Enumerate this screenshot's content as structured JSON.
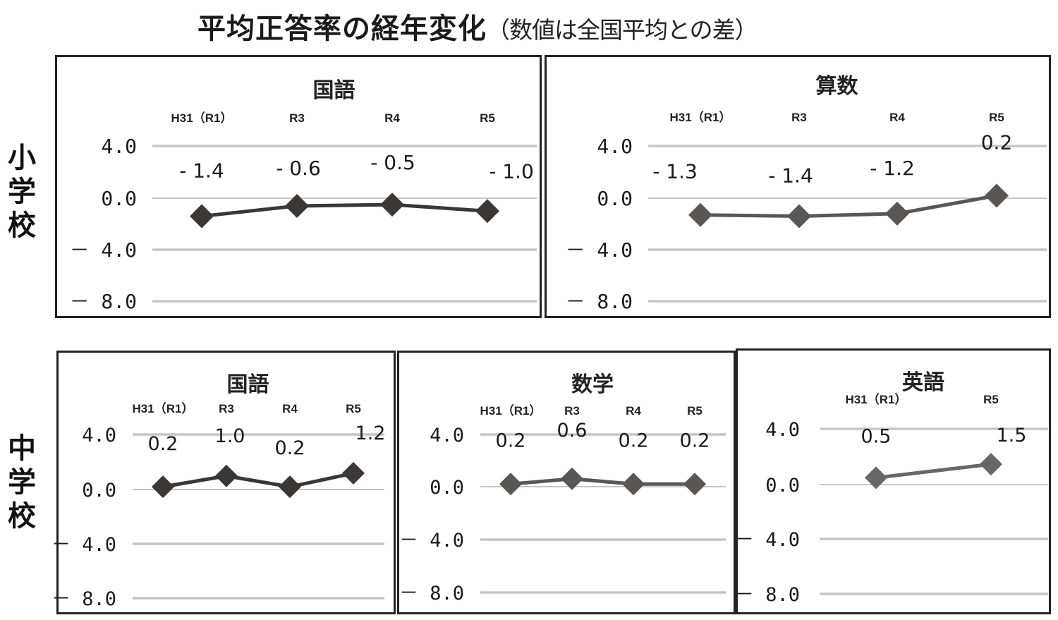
{
  "title": {
    "main": "平均正答率の経年変化",
    "sub": "（数値は全国平均との差）"
  },
  "rows": {
    "elementary": "小学校",
    "junior_high": "中学校"
  },
  "chart_data": [
    {
      "type": "line",
      "school": "小学校",
      "title": "国語",
      "categories": [
        "H31（R1）",
        "R3",
        "R4",
        "R5"
      ],
      "values": [
        -1.4,
        -0.6,
        -0.5,
        -1.0
      ],
      "data_labels": [
        "- 1.4",
        "- 0.6",
        "- 0.5",
        "- 1.0"
      ],
      "yticks": [
        "4.0",
        "0.0",
        "－ 4.0",
        "－ 8.0"
      ],
      "ylim": [
        -8.0,
        4.0
      ],
      "grid": true,
      "color": "#3a3735"
    },
    {
      "type": "line",
      "school": "小学校",
      "title": "算数",
      "categories": [
        "H31（R1）",
        "R3",
        "R4",
        "R5"
      ],
      "values": [
        -1.3,
        -1.4,
        -1.2,
        0.2
      ],
      "data_labels": [
        "- 1.3",
        "- 1.4",
        "- 1.2",
        "0.2"
      ],
      "yticks": [
        "4.0",
        "0.0",
        "－ 4.0",
        "－ 8.0"
      ],
      "ylim": [
        -8.0,
        4.0
      ],
      "grid": true,
      "color": "#5a5654"
    },
    {
      "type": "line",
      "school": "中学校",
      "title": "国語",
      "categories": [
        "H31（R1）",
        "R3",
        "R4",
        "R5"
      ],
      "values": [
        0.2,
        1.0,
        0.2,
        1.2
      ],
      "data_labels": [
        "0.2",
        "1.0",
        "0.2",
        "1.2"
      ],
      "yticks": [
        "4.0",
        "0.0",
        "－ 4.0",
        "－ 8.0"
      ],
      "ylim": [
        -8.0,
        4.0
      ],
      "grid": true,
      "color": "#3a3735"
    },
    {
      "type": "line",
      "school": "中学校",
      "title": "数学",
      "categories": [
        "H31（R1）",
        "R3",
        "R4",
        "R5"
      ],
      "values": [
        0.2,
        0.6,
        0.2,
        0.2
      ],
      "data_labels": [
        "0.2",
        "0.6",
        "0.2",
        "0.2"
      ],
      "yticks": [
        "4.0",
        "0.0",
        "－ 4.0",
        "－ 8.0"
      ],
      "ylim": [
        -8.0,
        4.0
      ],
      "grid": true,
      "color": "#5a5654"
    },
    {
      "type": "line",
      "school": "中学校",
      "title": "英語",
      "categories": [
        "H31（R1）",
        "R5"
      ],
      "values": [
        0.5,
        1.5
      ],
      "data_labels": [
        "0.5",
        "1.5"
      ],
      "yticks": [
        "4.0",
        "0.0",
        "－ 4.0",
        "－ 8.0"
      ],
      "ylim": [
        -8.0,
        4.0
      ],
      "grid": true,
      "color": "#6a6664"
    }
  ]
}
